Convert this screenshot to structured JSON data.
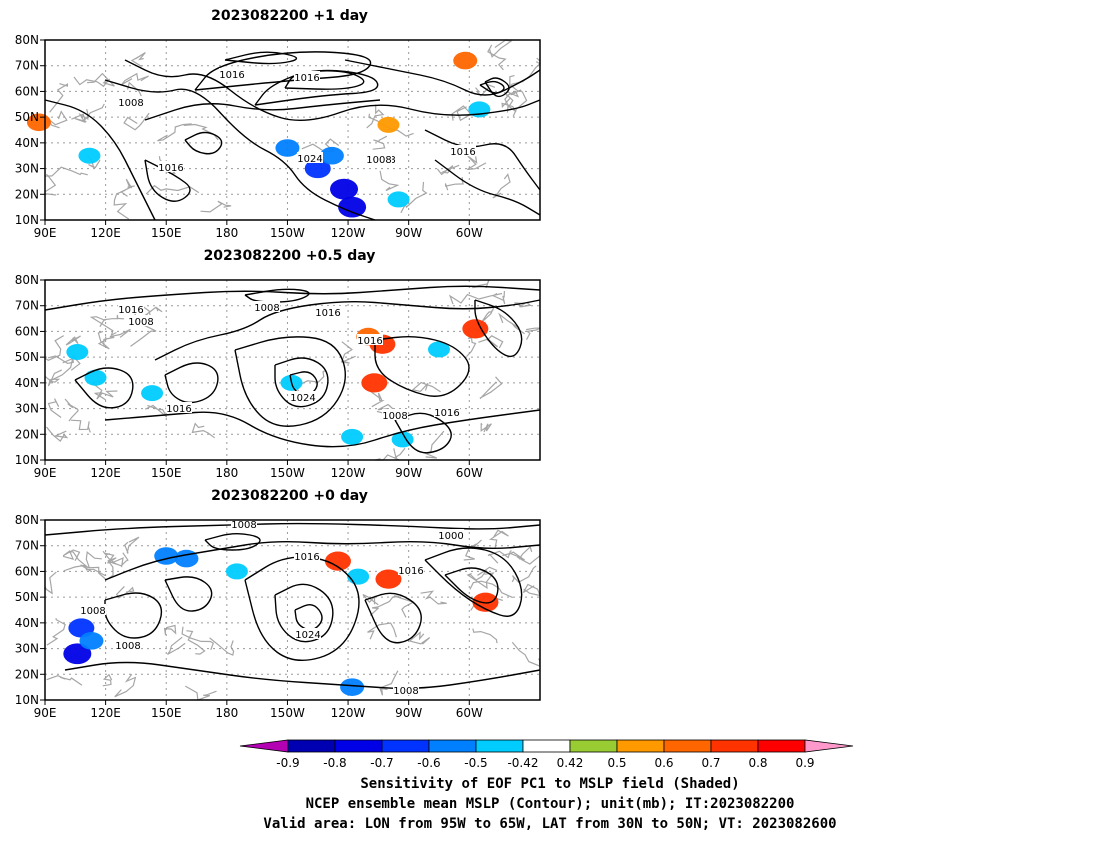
{
  "colors": {
    "contour_mslp": "#000000",
    "coast": "#a6a6a6",
    "grid_dots": "#9a9a9a",
    "scale": [
      "#b300b3",
      "#0000b3",
      "#0000e6",
      "#0033ff",
      "#0080ff",
      "#00ccff",
      "#ffffff",
      "#99cc33",
      "#ff9900",
      "#ff6600",
      "#ff3300",
      "#ff0000",
      "#ff99cc"
    ]
  },
  "map": {
    "lon_labels": [
      "90E",
      "120E",
      "150E",
      "180",
      "150W",
      "120W",
      "90W",
      "60W"
    ],
    "lat_labels": [
      "80N",
      "70N",
      "60N",
      "50N",
      "40N",
      "30N",
      "20N",
      "10N"
    ]
  },
  "panels": [
    {
      "title": "2023082200 +1 day",
      "contour_labels": [
        "1016",
        "1016",
        "1008",
        "1008",
        "1016",
        "1024",
        "1008",
        "1016"
      ],
      "shading": [
        {
          "lon": -150,
          "lat": 38,
          "value": -0.6
        },
        {
          "lon": -135,
          "lat": 30,
          "value": -0.7
        },
        {
          "lon": -122,
          "lat": 22,
          "value": -0.8
        },
        {
          "lon": -118,
          "lat": 15,
          "value": -0.8
        },
        {
          "lon": -128,
          "lat": 35,
          "value": -0.6
        },
        {
          "lon": -95,
          "lat": 18,
          "value": -0.5
        },
        {
          "lon": 87,
          "lat": 48,
          "value": 0.6
        },
        {
          "lon": 112,
          "lat": 35,
          "value": -0.5
        },
        {
          "lon": -62,
          "lat": 72,
          "value": 0.6
        },
        {
          "lon": -100,
          "lat": 47,
          "value": 0.5
        },
        {
          "lon": -55,
          "lat": 53,
          "value": -0.5
        }
      ]
    },
    {
      "title": "2023082200 +0.5 day",
      "contour_labels": [
        "1016",
        "1008",
        "1008",
        "1016",
        "1016",
        "1024",
        "1016",
        "1008",
        "1016"
      ],
      "shading": [
        {
          "lon": -103,
          "lat": 55,
          "value": 0.7
        },
        {
          "lon": -110,
          "lat": 58,
          "value": 0.6
        },
        {
          "lon": -57,
          "lat": 61,
          "value": 0.7
        },
        {
          "lon": -148,
          "lat": 40,
          "value": -0.5
        },
        {
          "lon": -118,
          "lat": 19,
          "value": -0.5
        },
        {
          "lon": 106,
          "lat": 52,
          "value": -0.5
        },
        {
          "lon": 115,
          "lat": 42,
          "value": -0.5
        },
        {
          "lon": 143,
          "lat": 36,
          "value": -0.5
        },
        {
          "lon": -107,
          "lat": 40,
          "value": 0.7
        },
        {
          "lon": -93,
          "lat": 18,
          "value": -0.5
        },
        {
          "lon": -75,
          "lat": 53,
          "value": -0.5
        }
      ]
    },
    {
      "title": "2023082200 +0 day",
      "contour_labels": [
        "1008",
        "1016",
        "1000",
        "1016",
        "1008",
        "1008",
        "1024",
        "1008"
      ],
      "shading": [
        {
          "lon": 108,
          "lat": 38,
          "value": -0.7
        },
        {
          "lon": 106,
          "lat": 28,
          "value": -0.8
        },
        {
          "lon": 113,
          "lat": 33,
          "value": -0.6
        },
        {
          "lon": 150,
          "lat": 66,
          "value": -0.6
        },
        {
          "lon": 160,
          "lat": 65,
          "value": -0.6
        },
        {
          "lon": -118,
          "lat": 15,
          "value": -0.6
        },
        {
          "lon": -125,
          "lat": 64,
          "value": 0.7
        },
        {
          "lon": -100,
          "lat": 57,
          "value": 0.7
        },
        {
          "lon": -52,
          "lat": 48,
          "value": 0.7
        },
        {
          "lon": -175,
          "lat": 60,
          "value": -0.5
        },
        {
          "lon": -115,
          "lat": 58,
          "value": -0.5
        }
      ]
    }
  ],
  "colorbar": {
    "labels": [
      "-0.9",
      "-0.8",
      "-0.7",
      "-0.6",
      "-0.5",
      "-0.42",
      "0.42",
      "0.5",
      "0.6",
      "0.7",
      "0.8",
      "0.9"
    ]
  },
  "caption": {
    "line1": "Sensitivity of EOF PC1 to MSLP field (Shaded)",
    "line2": "NCEP ensemble mean MSLP (Contour); unit(mb); IT:2023082200",
    "line3": "Valid area: LON from 95W to 65W, LAT from 30N to 50N; VT: 2023082600"
  }
}
